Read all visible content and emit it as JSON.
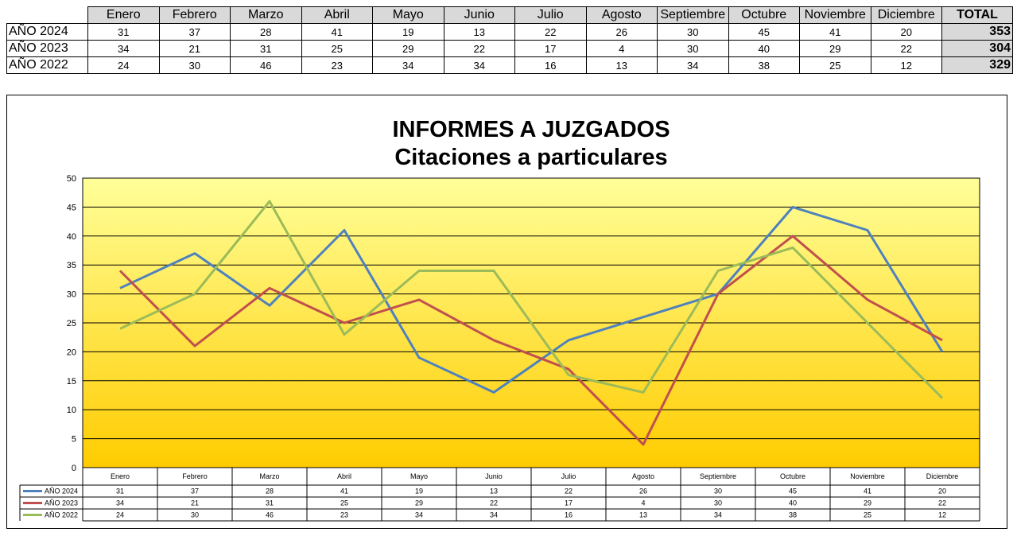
{
  "table": {
    "months": [
      "Enero",
      "Febrero",
      "Marzo",
      "Abril",
      "Mayo",
      "Junio",
      "Julio",
      "Agosto",
      "Septiembre",
      "Octubre",
      "Noviembre",
      "Diciembre"
    ],
    "total_label": "TOTAL",
    "rows": [
      {
        "label": "AÑO 2024",
        "values": [
          31,
          37,
          28,
          41,
          19,
          13,
          22,
          26,
          30,
          45,
          41,
          20
        ],
        "total": 353
      },
      {
        "label": "AÑO 2023",
        "values": [
          34,
          21,
          31,
          25,
          29,
          22,
          17,
          4,
          30,
          40,
          29,
          22
        ],
        "total": 304
      },
      {
        "label": "AÑO 2022",
        "values": [
          24,
          30,
          46,
          23,
          34,
          34,
          16,
          13,
          34,
          38,
          25,
          12
        ],
        "total": 329
      }
    ]
  },
  "chart_data": {
    "type": "line",
    "title": "INFORMES A JUZGADOS",
    "subtitle": "Citaciones a particulares",
    "categories": [
      "Enero",
      "Febrero",
      "Marzo",
      "Abril",
      "Mayo",
      "Junio",
      "Julio",
      "Agosto",
      "Septiembre",
      "Octubre",
      "Noviembre",
      "Diciembre"
    ],
    "series": [
      {
        "name": "AÑO 2024",
        "color": "#4f81bd",
        "values": [
          31,
          37,
          28,
          41,
          19,
          13,
          22,
          26,
          30,
          45,
          41,
          20
        ]
      },
      {
        "name": "AÑO 2023",
        "color": "#c0504d",
        "values": [
          34,
          21,
          31,
          25,
          29,
          22,
          17,
          4,
          30,
          40,
          29,
          22
        ]
      },
      {
        "name": "AÑO 2022",
        "color": "#9bbb59",
        "values": [
          24,
          30,
          46,
          23,
          34,
          34,
          16,
          13,
          34,
          38,
          25,
          12
        ]
      }
    ],
    "ylim": [
      0,
      50
    ],
    "ytick_step": 5,
    "grid": true,
    "legend": "data-table",
    "plot_gradient": [
      "#ffff99",
      "#ffcc00"
    ]
  }
}
